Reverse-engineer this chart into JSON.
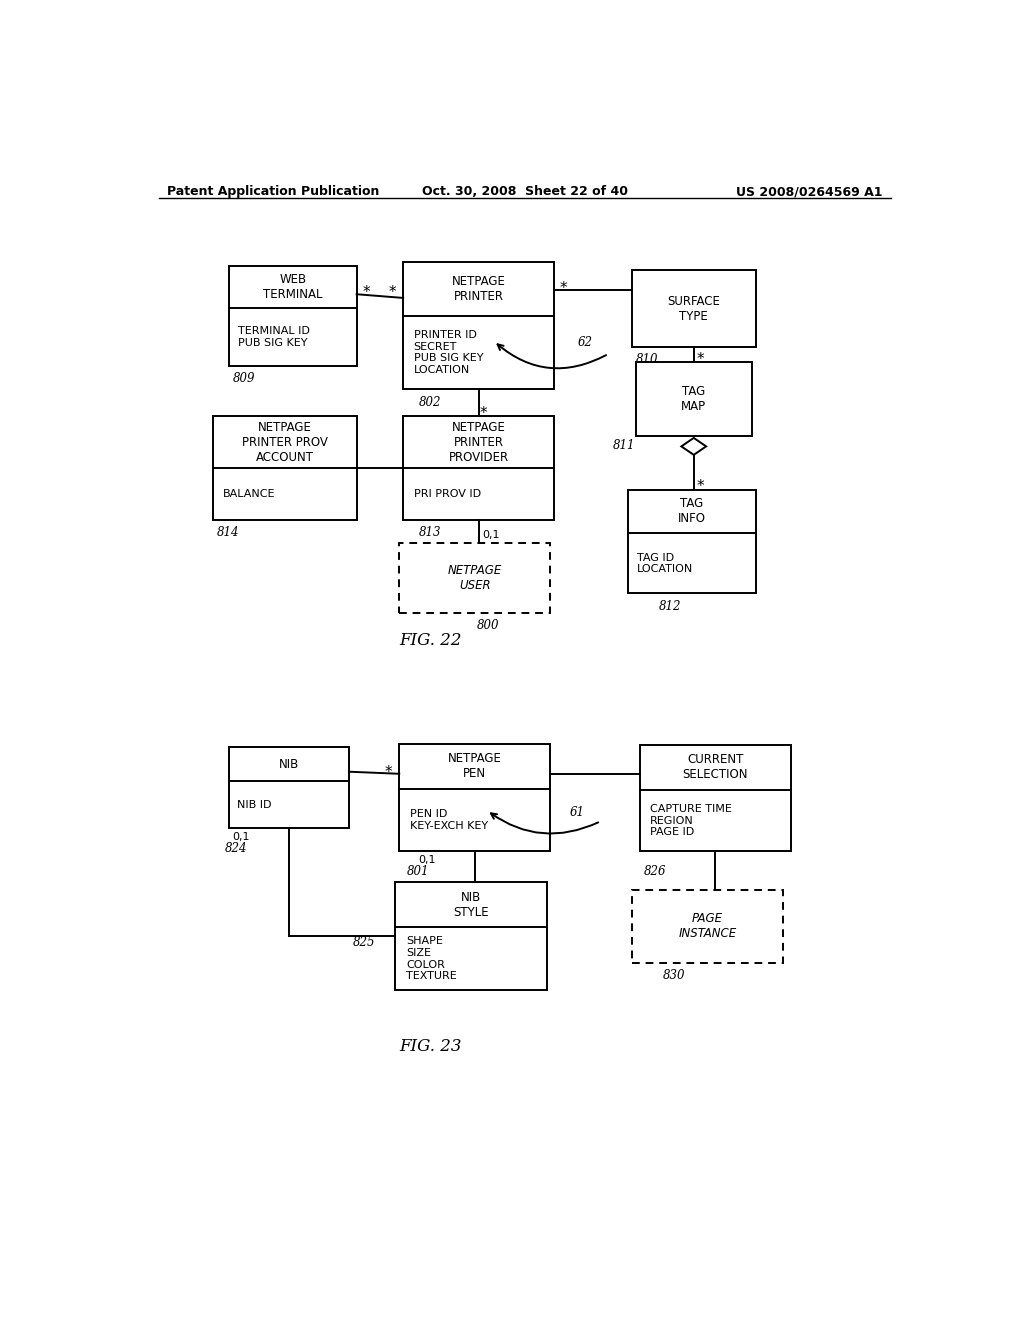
{
  "header_left": "Patent Application Publication",
  "header_mid": "Oct. 30, 2008  Sheet 22 of 40",
  "header_right": "US 2008/0264569 A1",
  "fig22_label": "FIG. 22",
  "fig23_label": "FIG. 23",
  "background": "#ffffff",
  "line_color": "#000000"
}
